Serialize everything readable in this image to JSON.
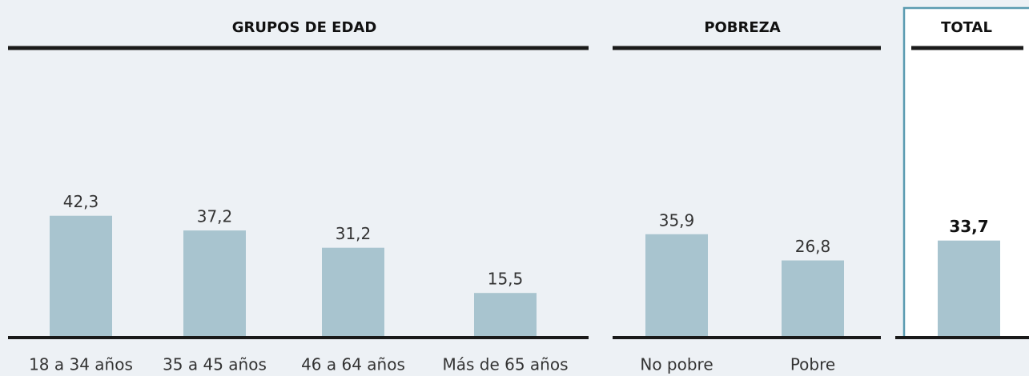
{
  "chart_data": [
    {
      "type": "bar",
      "title": "GRUPOS DE EDAD",
      "categories": [
        "18 a 34 años",
        "35 a 45 años",
        "46 a 64 años",
        "Más de 65 años"
      ],
      "values": [
        42.3,
        37.2,
        31.2,
        15.5
      ],
      "value_labels": [
        "42,3",
        "37,2",
        "31,2",
        "15,5"
      ],
      "color": "#a8c4cf"
    },
    {
      "type": "bar",
      "title": "POBREZA",
      "categories": [
        "No pobre",
        "Pobre"
      ],
      "values": [
        35.9,
        26.8
      ],
      "value_labels": [
        "35,9",
        "26,8"
      ],
      "color": "#a8c4cf"
    },
    {
      "type": "bar",
      "title": "TOTAL",
      "categories": [
        null
      ],
      "values": [
        33.7
      ],
      "value_labels": [
        "33,7"
      ],
      "color": "#a8c4cf"
    }
  ]
}
